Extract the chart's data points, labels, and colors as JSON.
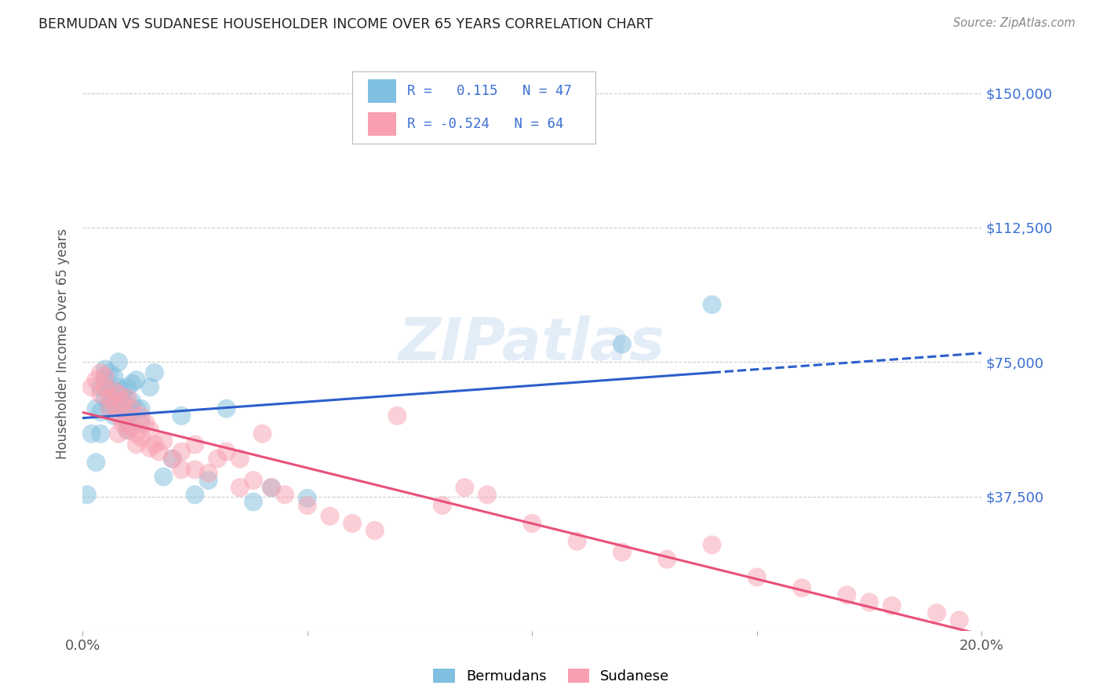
{
  "title": "BERMUDAN VS SUDANESE HOUSEHOLDER INCOME OVER 65 YEARS CORRELATION CHART",
  "source": "Source: ZipAtlas.com",
  "ylabel": "Householder Income Over 65 years",
  "watermark": "ZIPatlas",
  "xlim": [
    0.0,
    0.2
  ],
  "ylim": [
    0,
    160000
  ],
  "xticks": [
    0.0,
    0.05,
    0.1,
    0.15,
    0.2
  ],
  "ytick_vals": [
    0,
    37500,
    75000,
    112500,
    150000
  ],
  "ytick_labels": [
    "",
    "$37,500",
    "$75,000",
    "$112,500",
    "$150,000"
  ],
  "grid_color": "#cccccc",
  "background_color": "#ffffff",
  "bermudan_color": "#7fbfdf",
  "sudanese_color": "#f9a0b0",
  "bermudan_R": 0.115,
  "bermudan_N": 47,
  "sudanese_R": -0.524,
  "sudanese_N": 64,
  "bermudan_line_color": "#2c5fcc",
  "sudanese_line_color": "#e8507a",
  "title_color": "#222222",
  "axis_label_color": "#555555",
  "ytick_color": "#3b6fd4",
  "legend_label_blue": "Bermudans",
  "legend_label_pink": "Sudanese",
  "bermudan_x": [
    0.001,
    0.002,
    0.003,
    0.003,
    0.004,
    0.004,
    0.004,
    0.005,
    0.005,
    0.005,
    0.006,
    0.006,
    0.006,
    0.007,
    0.007,
    0.007,
    0.007,
    0.008,
    0.008,
    0.008,
    0.009,
    0.009,
    0.009,
    0.01,
    0.01,
    0.01,
    0.01,
    0.01,
    0.011,
    0.011,
    0.012,
    0.012,
    0.013,
    0.013,
    0.015,
    0.016,
    0.018,
    0.02,
    0.022,
    0.025,
    0.028,
    0.032,
    0.038,
    0.042,
    0.05,
    0.12,
    0.14
  ],
  "bermudan_y": [
    38000,
    55000,
    62000,
    47000,
    68000,
    61000,
    55000,
    70000,
    73000,
    65000,
    72000,
    66000,
    63000,
    67000,
    71000,
    65000,
    60000,
    75000,
    68000,
    63000,
    67000,
    65000,
    62000,
    68000,
    63000,
    60000,
    58000,
    56000,
    69000,
    64000,
    70000,
    62000,
    62000,
    58000,
    68000,
    72000,
    43000,
    48000,
    60000,
    38000,
    42000,
    62000,
    36000,
    40000,
    37000,
    80000,
    91000
  ],
  "sudanese_x": [
    0.002,
    0.003,
    0.004,
    0.004,
    0.005,
    0.005,
    0.006,
    0.006,
    0.007,
    0.007,
    0.008,
    0.008,
    0.008,
    0.009,
    0.009,
    0.01,
    0.01,
    0.01,
    0.011,
    0.011,
    0.012,
    0.012,
    0.013,
    0.013,
    0.014,
    0.015,
    0.015,
    0.016,
    0.017,
    0.018,
    0.02,
    0.022,
    0.022,
    0.025,
    0.025,
    0.028,
    0.03,
    0.032,
    0.035,
    0.035,
    0.038,
    0.04,
    0.042,
    0.045,
    0.05,
    0.055,
    0.06,
    0.065,
    0.07,
    0.08,
    0.085,
    0.09,
    0.1,
    0.11,
    0.12,
    0.13,
    0.14,
    0.15,
    0.16,
    0.17,
    0.175,
    0.18,
    0.19,
    0.195
  ],
  "sudanese_y": [
    68000,
    70000,
    72000,
    66000,
    71000,
    68000,
    65000,
    62000,
    67000,
    63000,
    66000,
    60000,
    55000,
    64000,
    58000,
    65000,
    60000,
    56000,
    62000,
    57000,
    55000,
    52000,
    60000,
    54000,
    58000,
    56000,
    51000,
    52000,
    50000,
    53000,
    48000,
    50000,
    45000,
    45000,
    52000,
    44000,
    48000,
    50000,
    40000,
    48000,
    42000,
    55000,
    40000,
    38000,
    35000,
    32000,
    30000,
    28000,
    60000,
    35000,
    40000,
    38000,
    30000,
    25000,
    22000,
    20000,
    24000,
    15000,
    12000,
    10000,
    8000,
    7000,
    5000,
    3000
  ]
}
